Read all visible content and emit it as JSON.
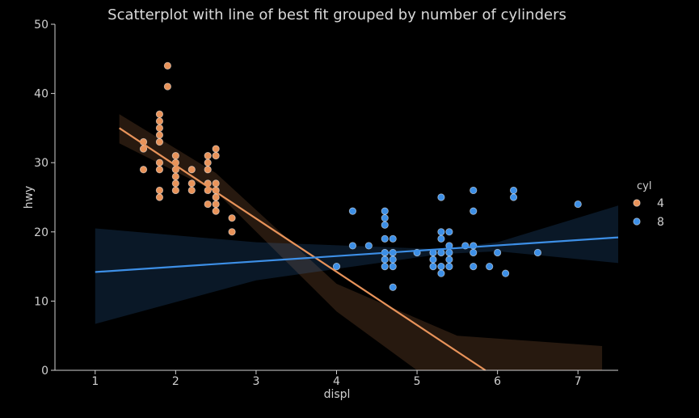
{
  "chart_data": {
    "type": "scatter",
    "title": "Scatterplot with line of best fit grouped by number of cylinders",
    "xlabel": "displ",
    "ylabel": "hwy",
    "xlim": [
      0.5,
      7.5
    ],
    "ylim": [
      0,
      50
    ],
    "xticks": [
      1,
      2,
      3,
      4,
      5,
      6,
      7
    ],
    "yticks": [
      0,
      10,
      20,
      30,
      40,
      50
    ],
    "grid": false,
    "legend_title": "cyl",
    "legend_position": "right",
    "series": [
      {
        "name": "4",
        "color": "#e8935a",
        "points": [
          [
            1.6,
            33
          ],
          [
            1.6,
            32
          ],
          [
            1.6,
            29
          ],
          [
            1.8,
            37
          ],
          [
            1.8,
            36
          ],
          [
            1.8,
            35
          ],
          [
            1.8,
            34
          ],
          [
            1.8,
            33
          ],
          [
            1.8,
            30
          ],
          [
            1.8,
            29
          ],
          [
            1.8,
            26
          ],
          [
            1.8,
            25
          ],
          [
            1.9,
            44
          ],
          [
            1.9,
            41
          ],
          [
            2.0,
            31
          ],
          [
            2.0,
            30
          ],
          [
            2.0,
            29
          ],
          [
            2.0,
            28
          ],
          [
            2.0,
            27
          ],
          [
            2.0,
            26
          ],
          [
            2.2,
            29
          ],
          [
            2.2,
            27
          ],
          [
            2.2,
            26
          ],
          [
            2.4,
            31
          ],
          [
            2.4,
            30
          ],
          [
            2.4,
            29
          ],
          [
            2.4,
            27
          ],
          [
            2.4,
            26
          ],
          [
            2.4,
            24
          ],
          [
            2.5,
            32
          ],
          [
            2.5,
            31
          ],
          [
            2.5,
            27
          ],
          [
            2.5,
            26
          ],
          [
            2.5,
            25
          ],
          [
            2.5,
            24
          ],
          [
            2.5,
            23
          ],
          [
            2.7,
            22
          ],
          [
            2.7,
            20
          ]
        ],
        "fit": {
          "x": [
            1.3,
            5.85
          ],
          "y": [
            35.0,
            0
          ]
        },
        "band_upper": [
          [
            1.3,
            37
          ],
          [
            2.5,
            28.5
          ],
          [
            4.0,
            12.5
          ],
          [
            5.5,
            5.0
          ],
          [
            7.3,
            3.5
          ]
        ],
        "band_lower": [
          [
            1.3,
            32.8
          ],
          [
            2.5,
            25.8
          ],
          [
            4.0,
            8.5
          ],
          [
            5.0,
            0
          ],
          [
            7.3,
            0
          ]
        ]
      },
      {
        "name": "8",
        "color": "#3d8fe6",
        "points": [
          [
            4.0,
            15
          ],
          [
            4.2,
            23
          ],
          [
            4.2,
            18
          ],
          [
            4.4,
            18
          ],
          [
            4.6,
            23
          ],
          [
            4.6,
            22
          ],
          [
            4.6,
            21
          ],
          [
            4.6,
            19
          ],
          [
            4.6,
            17
          ],
          [
            4.6,
            16
          ],
          [
            4.6,
            15
          ],
          [
            4.7,
            19
          ],
          [
            4.7,
            17
          ],
          [
            4.7,
            16
          ],
          [
            4.7,
            15
          ],
          [
            4.7,
            12
          ],
          [
            5.0,
            17
          ],
          [
            5.2,
            17
          ],
          [
            5.2,
            16
          ],
          [
            5.2,
            15
          ],
          [
            5.3,
            25
          ],
          [
            5.3,
            20
          ],
          [
            5.3,
            19
          ],
          [
            5.3,
            17
          ],
          [
            5.3,
            15
          ],
          [
            5.3,
            14
          ],
          [
            5.4,
            20
          ],
          [
            5.4,
            18
          ],
          [
            5.4,
            17
          ],
          [
            5.4,
            16
          ],
          [
            5.4,
            15
          ],
          [
            5.6,
            18
          ],
          [
            5.7,
            26
          ],
          [
            5.7,
            23
          ],
          [
            5.7,
            18
          ],
          [
            5.7,
            17
          ],
          [
            5.7,
            15
          ],
          [
            5.9,
            15
          ],
          [
            6.0,
            17
          ],
          [
            6.1,
            14
          ],
          [
            6.2,
            26
          ],
          [
            6.2,
            25
          ],
          [
            6.5,
            17
          ],
          [
            7.0,
            24
          ]
        ],
        "fit": {
          "x": [
            1.0,
            7.5
          ],
          "y": [
            14.2,
            19.2
          ]
        },
        "band_upper": [
          [
            1.0,
            20.5
          ],
          [
            3.0,
            18.5
          ],
          [
            5.3,
            17.5
          ],
          [
            6.0,
            18.5
          ],
          [
            7.5,
            23.8
          ]
        ],
        "band_lower": [
          [
            1.0,
            6.7
          ],
          [
            3.0,
            13.0
          ],
          [
            5.3,
            16.8
          ],
          [
            6.0,
            17.2
          ],
          [
            7.5,
            15.5
          ]
        ]
      }
    ]
  }
}
